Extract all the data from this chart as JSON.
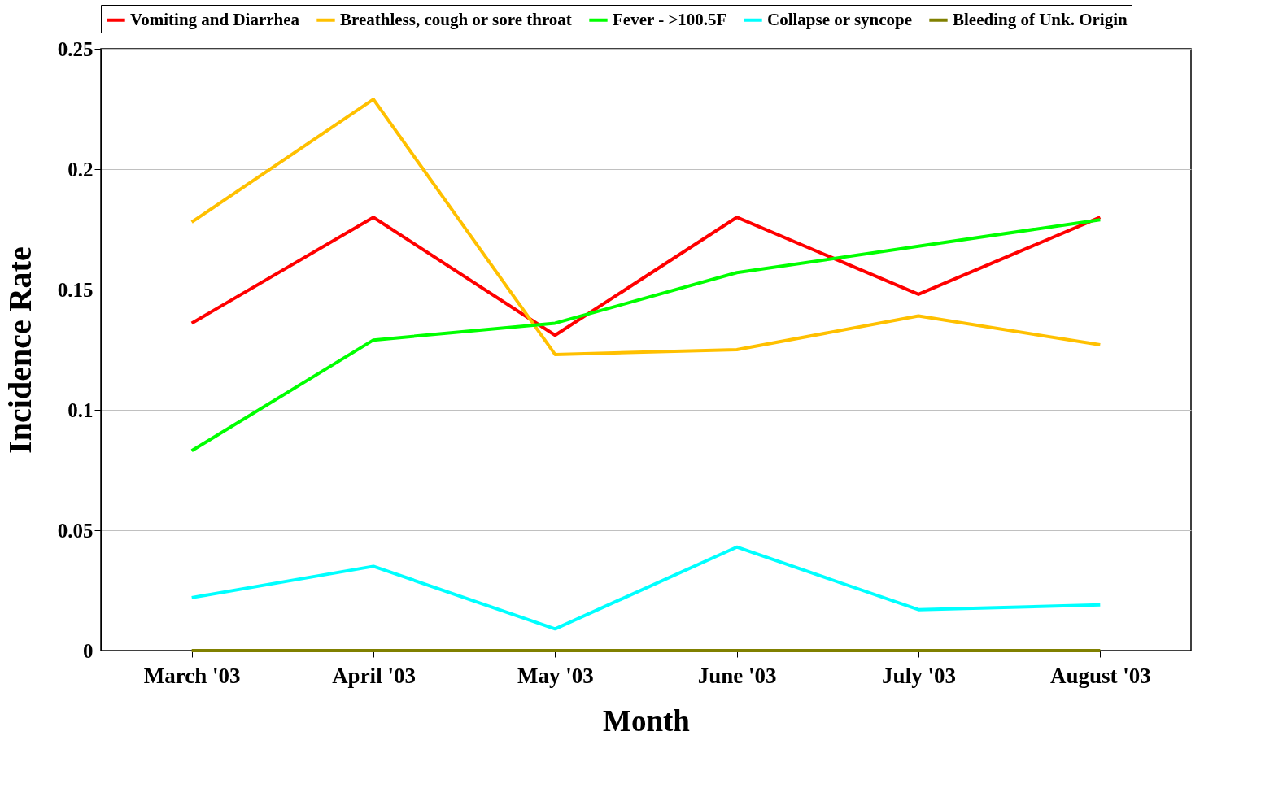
{
  "chart_data": {
    "type": "line",
    "xlabel": "Month",
    "ylabel": "Incidence Rate",
    "categories": [
      "March '03",
      "April '03",
      "May '03",
      "June '03",
      "July '03",
      "August '03"
    ],
    "series": [
      {
        "name": "Vomiting and Diarrhea",
        "color": "#ff0000",
        "values": [
          0.136,
          0.18,
          0.131,
          0.18,
          0.148,
          0.18
        ]
      },
      {
        "name": "Breathless, cough or sore throat",
        "color": "#ffc000",
        "values": [
          0.178,
          0.229,
          0.123,
          0.125,
          0.139,
          0.127
        ]
      },
      {
        "name": "Fever - >100.5F",
        "color": "#00ff00",
        "values": [
          0.083,
          0.129,
          0.136,
          0.157,
          0.168,
          0.179
        ]
      },
      {
        "name": "Collapse or syncope",
        "color": "#00ffff",
        "values": [
          0.022,
          0.035,
          0.009,
          0.043,
          0.017,
          0.019
        ]
      },
      {
        "name": "Bleeding of Unk. Origin",
        "color": "#808000",
        "values": [
          0,
          0,
          0,
          0,
          0,
          0
        ]
      }
    ],
    "ylim": [
      0,
      0.25
    ],
    "yticks": [
      0,
      0.05,
      0.1,
      0.15,
      0.2,
      0.25
    ],
    "grid": "y",
    "legend": "top",
    "marker": "none",
    "line_style": "solid"
  }
}
